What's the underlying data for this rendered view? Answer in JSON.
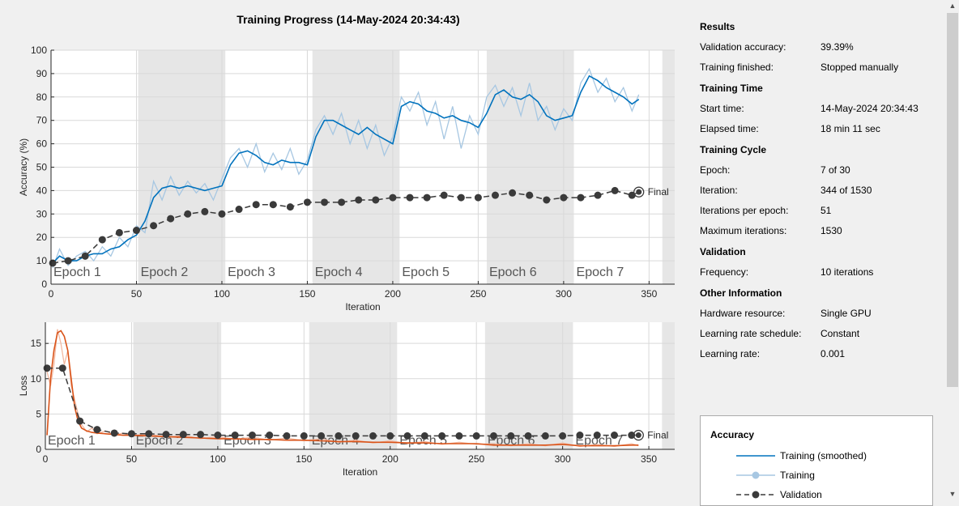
{
  "title": "Training Progress (14-May-2024 20:34:43)",
  "colors": {
    "smoothed": "#0072bd",
    "raw": "#a7c7e2",
    "validation": "#3a3a3a",
    "loss_smoothed": "#d95319",
    "loss_raw": "#f2b8a0",
    "epoch_shade": "#e6e6e6"
  },
  "chart_data": [
    {
      "type": "line",
      "ylabel": "Accuracy (%)",
      "xlabel": "Iteration",
      "xlim": [
        0,
        365
      ],
      "ylim": [
        0,
        100
      ],
      "xticks": [
        "0",
        "50",
        "100",
        "150",
        "200",
        "250",
        "300",
        "350"
      ],
      "yticks": [
        "0",
        "10",
        "20",
        "30",
        "40",
        "50",
        "60",
        "70",
        "80",
        "90",
        "100"
      ],
      "epochs": [
        "Epoch 1",
        "Epoch 2",
        "Epoch 3",
        "Epoch 4",
        "Epoch 5",
        "Epoch 6",
        "Epoch 7"
      ],
      "epoch_boundaries": [
        0,
        51,
        102,
        153,
        204,
        255,
        306,
        344
      ],
      "final_label": "Final",
      "series": [
        {
          "name": "Training (smoothed)",
          "x": [
            1,
            5,
            10,
            15,
            20,
            25,
            30,
            35,
            40,
            45,
            50,
            55,
            60,
            65,
            70,
            75,
            80,
            85,
            90,
            95,
            100,
            105,
            110,
            115,
            120,
            125,
            130,
            135,
            140,
            145,
            150,
            155,
            160,
            165,
            170,
            175,
            180,
            185,
            190,
            195,
            200,
            205,
            210,
            215,
            220,
            225,
            230,
            235,
            240,
            245,
            250,
            255,
            260,
            265,
            270,
            275,
            280,
            285,
            290,
            295,
            300,
            305,
            310,
            315,
            320,
            325,
            330,
            335,
            340,
            344
          ],
          "values": [
            9,
            12,
            10,
            10,
            12,
            13,
            13,
            15,
            16,
            19,
            21,
            27,
            37,
            41,
            42,
            41,
            42,
            41,
            40,
            41,
            42,
            51,
            56,
            57,
            55,
            52,
            51,
            53,
            52,
            52,
            51,
            63,
            70,
            70,
            68,
            66,
            64,
            67,
            64,
            62,
            60,
            76,
            78,
            77,
            74,
            73,
            71,
            72,
            70,
            69,
            67,
            73,
            81,
            83,
            80,
            79,
            81,
            78,
            72,
            70,
            71,
            72,
            82,
            89,
            87,
            84,
            82,
            80,
            77,
            79
          ]
        },
        {
          "name": "Training",
          "x": [
            1,
            5,
            10,
            15,
            20,
            25,
            30,
            35,
            40,
            45,
            50,
            55,
            60,
            65,
            70,
            75,
            80,
            85,
            90,
            95,
            100,
            105,
            110,
            115,
            120,
            125,
            130,
            135,
            140,
            145,
            150,
            155,
            160,
            165,
            170,
            175,
            180,
            185,
            190,
            195,
            200,
            205,
            210,
            215,
            220,
            225,
            230,
            235,
            240,
            245,
            250,
            255,
            260,
            265,
            270,
            275,
            280,
            285,
            290,
            295,
            300,
            305,
            310,
            315,
            320,
            325,
            330,
            335,
            340,
            344
          ],
          "values": [
            7,
            15,
            8,
            12,
            14,
            10,
            16,
            12,
            20,
            16,
            25,
            22,
            44,
            36,
            46,
            38,
            44,
            39,
            43,
            36,
            45,
            54,
            58,
            50,
            60,
            48,
            56,
            49,
            58,
            47,
            53,
            66,
            72,
            64,
            73,
            60,
            70,
            58,
            68,
            55,
            63,
            80,
            74,
            82,
            68,
            78,
            62,
            76,
            58,
            72,
            64,
            80,
            85,
            76,
            84,
            72,
            86,
            70,
            76,
            66,
            75,
            70,
            86,
            92,
            82,
            88,
            78,
            84,
            74,
            81
          ]
        },
        {
          "name": "Validation",
          "x": [
            1,
            10,
            20,
            30,
            40,
            50,
            60,
            70,
            80,
            90,
            100,
            110,
            120,
            130,
            140,
            150,
            160,
            170,
            180,
            190,
            200,
            210,
            220,
            230,
            240,
            250,
            260,
            270,
            280,
            290,
            300,
            310,
            320,
            330,
            340,
            344
          ],
          "values": [
            9,
            10,
            12,
            19,
            22,
            23,
            25,
            28,
            30,
            31,
            30,
            32,
            34,
            34,
            33,
            35,
            35,
            35,
            36,
            36,
            37,
            37,
            37,
            38,
            37,
            37,
            38,
            39,
            38,
            36,
            37,
            37,
            38,
            40,
            38,
            39.39
          ]
        }
      ]
    },
    {
      "type": "line",
      "ylabel": "Loss",
      "xlabel": "Iteration",
      "xlim": [
        0,
        365
      ],
      "ylim": [
        0,
        18
      ],
      "xticks": [
        "0",
        "50",
        "100",
        "150",
        "200",
        "250",
        "300",
        "350"
      ],
      "yticks": [
        "0",
        "5",
        "10",
        "15"
      ],
      "epochs": [
        "Epoch 1",
        "Epoch 2",
        "Epoch 3",
        "Epoch 4",
        "Epoch 5",
        "Epoch 6",
        "Epoch 7"
      ],
      "epoch_boundaries": [
        0,
        51,
        102,
        153,
        204,
        255,
        306,
        344
      ],
      "final_label": "Final",
      "series": [
        {
          "name": "Training (smoothed)",
          "x": [
            1,
            3,
            5,
            7,
            9,
            11,
            13,
            15,
            17,
            19,
            21,
            24,
            27,
            30,
            35,
            40,
            45,
            50,
            60,
            70,
            80,
            90,
            100,
            110,
            120,
            130,
            140,
            150,
            160,
            170,
            180,
            190,
            200,
            210,
            220,
            230,
            240,
            250,
            260,
            270,
            280,
            290,
            300,
            310,
            320,
            330,
            340,
            344
          ],
          "values": [
            2,
            10,
            14,
            16.5,
            16.8,
            16,
            14,
            10,
            6,
            4,
            3,
            2.6,
            2.4,
            2.3,
            2.2,
            2.1,
            2.0,
            2.0,
            1.9,
            1.8,
            1.7,
            1.6,
            1.5,
            1.5,
            1.4,
            1.4,
            1.3,
            1.3,
            1.2,
            1.1,
            1.1,
            1.0,
            1.0,
            0.9,
            0.9,
            0.8,
            0.8,
            0.8,
            0.6,
            0.6,
            0.6,
            0.6,
            0.7,
            0.5,
            0.5,
            0.5,
            0.6,
            0.6
          ]
        },
        {
          "name": "Training",
          "x": [
            1,
            3,
            5,
            7,
            9,
            11,
            13,
            15,
            17,
            19,
            21,
            24,
            27,
            30,
            35,
            40,
            45,
            50,
            60,
            70,
            80,
            90,
            100,
            110,
            120,
            130,
            140,
            150,
            160,
            170,
            180,
            190,
            200,
            210,
            220,
            230,
            240,
            250,
            260,
            270,
            280,
            290,
            300,
            310,
            320,
            330,
            340,
            344
          ],
          "values": [
            11,
            9,
            12,
            17,
            15,
            12,
            14,
            9,
            7,
            5,
            3.5,
            2.5,
            3,
            2.2,
            2.6,
            2.0,
            2.3,
            1.9,
            2.2,
            1.7,
            2.0,
            1.5,
            1.8,
            1.4,
            1.7,
            1.3,
            1.6,
            1.2,
            1.5,
            1.0,
            1.3,
            0.9,
            1.2,
            0.8,
            1.1,
            0.7,
            1.0,
            0.7,
            0.8,
            0.5,
            0.8,
            0.5,
            0.9,
            0.4,
            0.7,
            0.4,
            0.8,
            0.5
          ]
        },
        {
          "name": "Validation",
          "x": [
            1,
            10,
            20,
            30,
            40,
            50,
            60,
            70,
            80,
            90,
            100,
            110,
            120,
            130,
            140,
            150,
            160,
            170,
            180,
            190,
            200,
            210,
            220,
            230,
            240,
            250,
            260,
            270,
            280,
            290,
            300,
            310,
            320,
            330,
            340,
            344
          ],
          "values": [
            11.5,
            11.5,
            4.0,
            2.8,
            2.3,
            2.2,
            2.2,
            2.1,
            2.1,
            2.1,
            2.0,
            2.0,
            2.0,
            2.0,
            1.9,
            1.9,
            1.9,
            1.9,
            1.9,
            1.9,
            1.9,
            1.9,
            1.9,
            1.9,
            1.9,
            1.9,
            1.9,
            1.9,
            1.9,
            1.9,
            1.9,
            2.0,
            2.0,
            2.0,
            2.0,
            2.0
          ]
        }
      ]
    }
  ],
  "info": {
    "sections": [
      {
        "title": "Results",
        "rows": [
          {
            "k": "Validation accuracy:",
            "v": "39.39%"
          },
          {
            "k": "Training finished:",
            "v": "Stopped manually"
          }
        ]
      },
      {
        "title": "Training Time",
        "rows": [
          {
            "k": "Start time:",
            "v": "14-May-2024 20:34:43"
          },
          {
            "k": "Elapsed time:",
            "v": "18 min 11 sec"
          }
        ]
      },
      {
        "title": "Training Cycle",
        "rows": [
          {
            "k": "Epoch:",
            "v": "7 of 30"
          },
          {
            "k": "Iteration:",
            "v": "344 of 1530"
          },
          {
            "k": "Iterations per epoch:",
            "v": "51"
          },
          {
            "k": "Maximum iterations:",
            "v": "1530"
          }
        ]
      },
      {
        "title": "Validation",
        "rows": [
          {
            "k": "Frequency:",
            "v": "10 iterations"
          }
        ]
      },
      {
        "title": "Other Information",
        "rows": [
          {
            "k": "Hardware resource:",
            "v": "Single GPU"
          },
          {
            "k": "Learning rate schedule:",
            "v": "Constant"
          },
          {
            "k": "Learning rate:",
            "v": "0.001"
          }
        ]
      }
    ]
  },
  "legend": {
    "title": "Accuracy",
    "items": [
      "Training (smoothed)",
      "Training",
      "Validation"
    ]
  }
}
